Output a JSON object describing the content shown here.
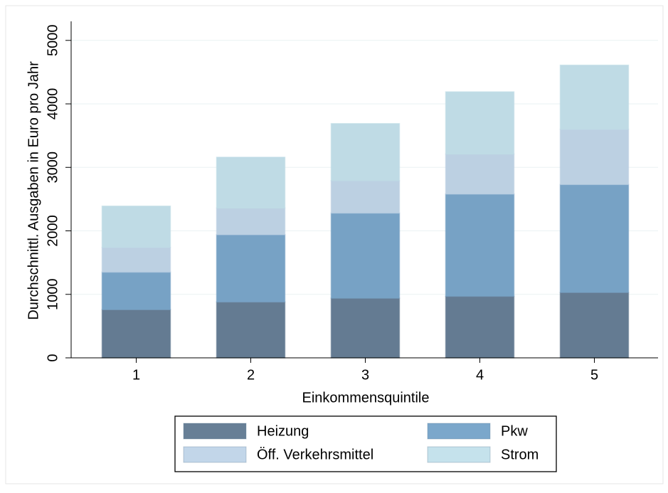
{
  "chart_data": {
    "type": "stacked_bar",
    "x_label": "Einkommensquintile",
    "y_label": "Durchschnittl. Ausgaben in Euro pro Jahr",
    "categories": [
      "1",
      "2",
      "3",
      "4",
      "5"
    ],
    "series": [
      {
        "name": "Heizung",
        "color": "#677f96",
        "values": [
          760,
          880,
          940,
          970,
          1030
        ]
      },
      {
        "name": "Pkw",
        "color": "#7ba7cb",
        "values": [
          590,
          1060,
          1340,
          1610,
          1700
        ]
      },
      {
        "name": "Öff. Verkehrsmittel",
        "color": "#c2d6e9",
        "values": [
          390,
          420,
          510,
          630,
          870
        ]
      },
      {
        "name": "Strom",
        "color": "#c5e2ec",
        "values": [
          650,
          800,
          900,
          980,
          1010
        ]
      }
    ],
    "ylim": [
      0,
      5300
    ],
    "yticks": [
      0,
      1000,
      2000,
      3000,
      4000,
      5000
    ],
    "grid": true
  }
}
